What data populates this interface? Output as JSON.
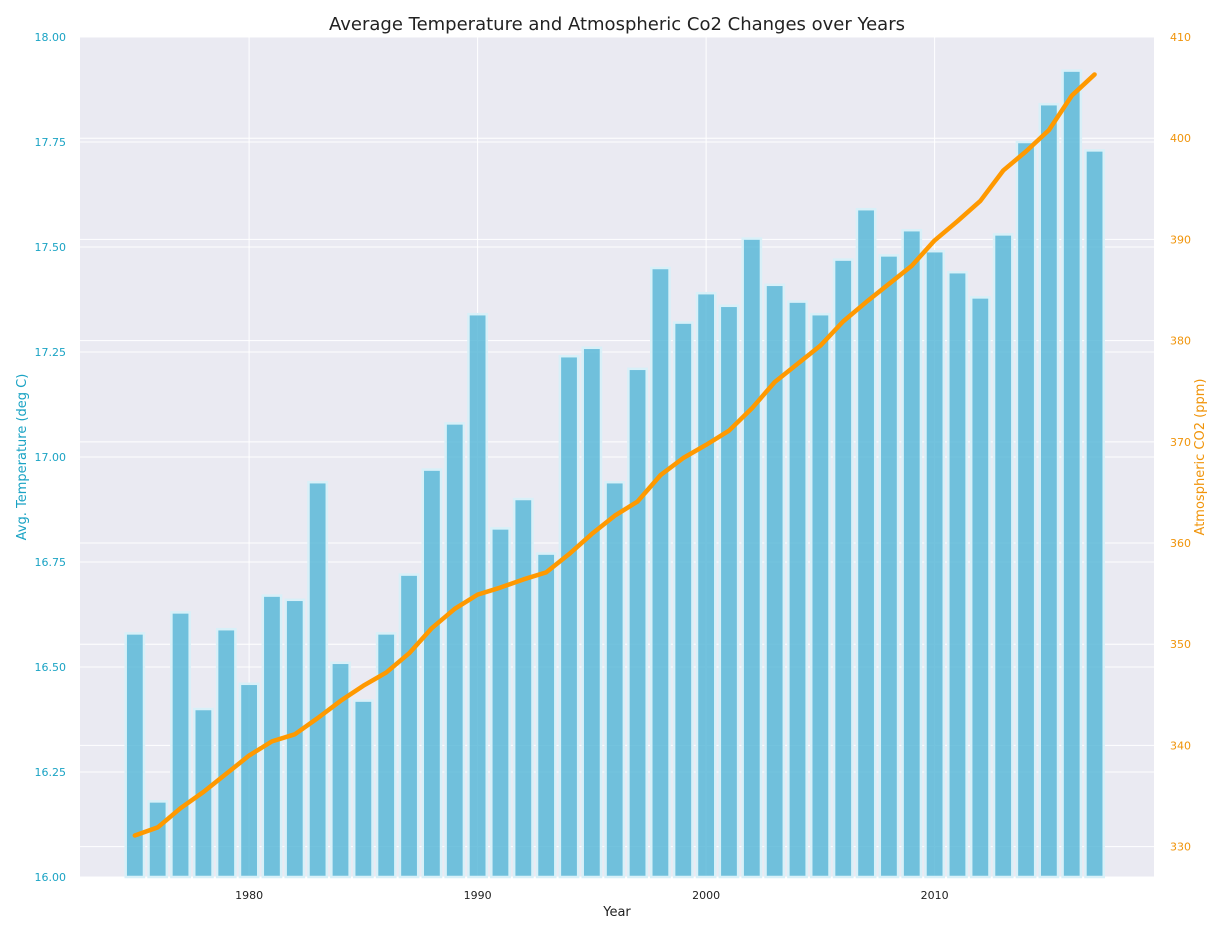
{
  "chart_data": {
    "type": "bar+line",
    "title": "Average Temperature and Atmospheric Co2 Changes over Years",
    "xlabel": "Year",
    "ylabel_left": "Avg. Temperature (deg C)",
    "ylabel_right": "Atmospheric CO2 (ppm)",
    "x_ticks": [
      "1980",
      "1990",
      "2000",
      "2010"
    ],
    "xlim": [
      1972.6,
      2019.6
    ],
    "ylim_left": [
      16.0,
      18.0
    ],
    "ylim_right": [
      327,
      410
    ],
    "yticks_left": [
      "16.00",
      "16.25",
      "16.50",
      "16.75",
      "17.00",
      "17.25",
      "17.50",
      "17.75",
      "18.00"
    ],
    "yticks_right": [
      "330",
      "340",
      "350",
      "360",
      "370",
      "380",
      "390",
      "400",
      "410"
    ],
    "grid": true,
    "years": [
      1975,
      1976,
      1977,
      1978,
      1979,
      1980,
      1981,
      1982,
      1983,
      1984,
      1985,
      1986,
      1987,
      1988,
      1989,
      1990,
      1991,
      1992,
      1993,
      1994,
      1995,
      1996,
      1997,
      1998,
      1999,
      2000,
      2001,
      2002,
      2003,
      2004,
      2005,
      2006,
      2007,
      2008,
      2009,
      2010,
      2011,
      2012,
      2013,
      2014,
      2015,
      2016,
      2017
    ],
    "series": [
      {
        "name": "Avg. Temperature (deg C)",
        "type": "bar",
        "axis": "left",
        "color": "#5bb9d8",
        "values": [
          16.58,
          16.18,
          16.63,
          16.4,
          16.59,
          16.46,
          16.67,
          16.66,
          16.94,
          16.51,
          16.42,
          16.58,
          16.72,
          16.97,
          17.08,
          17.34,
          16.83,
          16.9,
          16.77,
          17.24,
          17.26,
          16.94,
          17.21,
          17.45,
          17.32,
          17.39,
          17.36,
          17.52,
          17.41,
          17.37,
          17.34,
          17.47,
          17.59,
          17.48,
          17.54,
          17.49,
          17.44,
          17.38,
          17.53,
          17.75,
          17.84,
          17.92,
          17.73
        ]
      },
      {
        "name": "Atmospheric CO2 (ppm)",
        "type": "line",
        "axis": "right",
        "color": "#ff9900",
        "values": [
          331.1,
          331.9,
          333.8,
          335.4,
          337.2,
          339.0,
          340.4,
          341.1,
          342.7,
          344.4,
          345.9,
          347.2,
          349.1,
          351.6,
          353.5,
          354.9,
          355.6,
          356.4,
          357.1,
          358.9,
          360.9,
          362.7,
          364.1,
          366.7,
          368.4,
          369.7,
          371.1,
          373.3,
          375.9,
          377.7,
          379.5,
          381.9,
          383.8,
          385.6,
          387.4,
          389.9,
          391.8,
          393.8,
          396.8,
          398.7,
          400.8,
          404.2,
          406.3
        ]
      }
    ]
  }
}
